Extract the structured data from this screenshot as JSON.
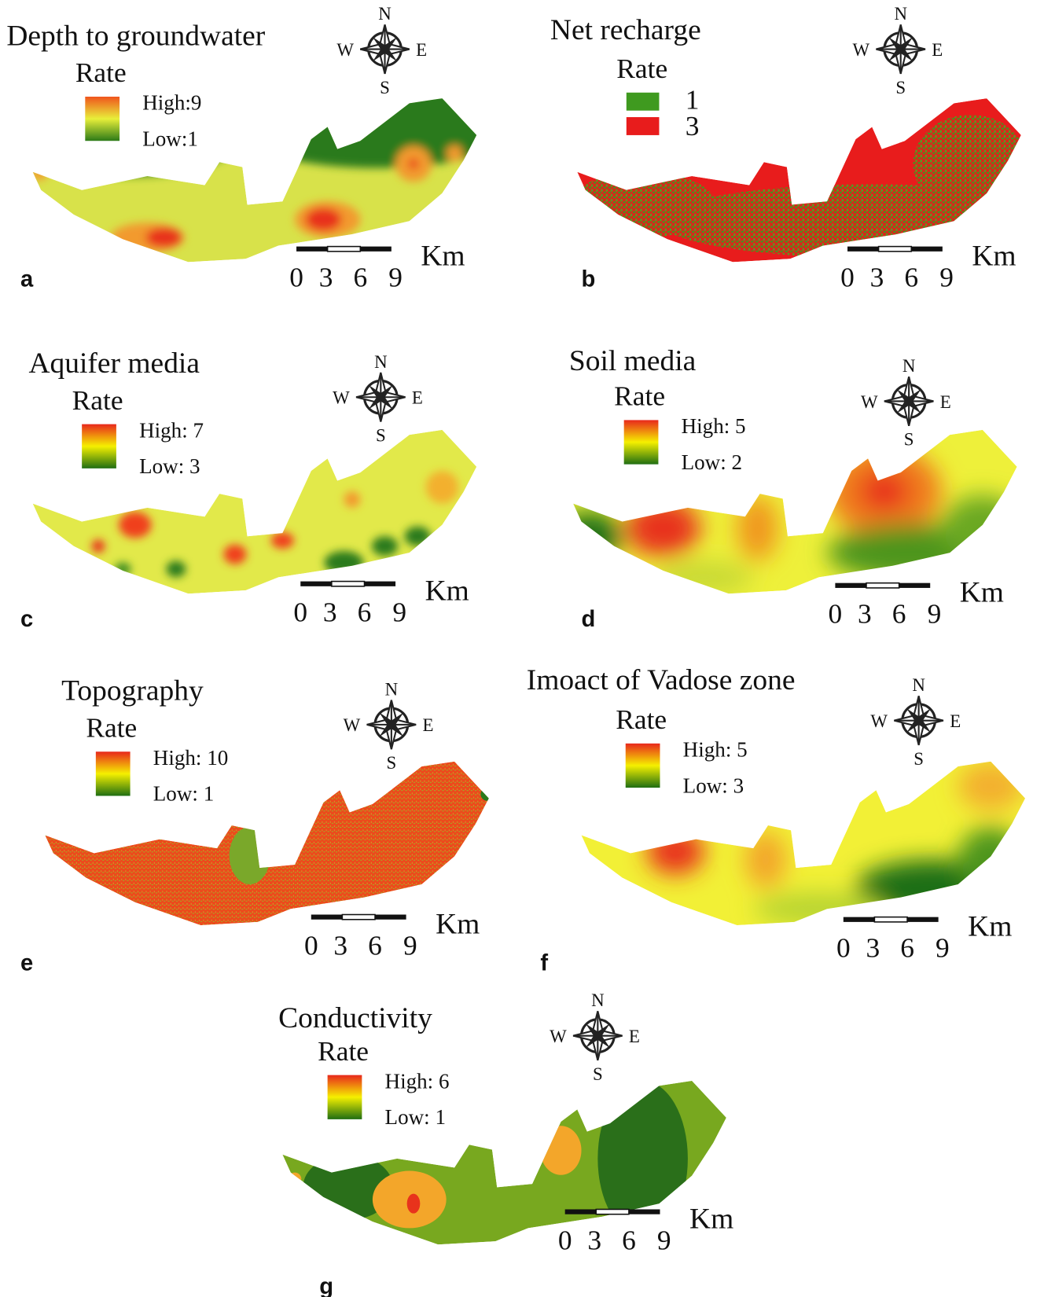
{
  "compass": {
    "north": "N",
    "south": "S",
    "west": "W",
    "east": "E"
  },
  "scale_bar": {
    "labels": [
      "0",
      "3",
      "6",
      "9"
    ],
    "unit": "Km"
  },
  "panels": [
    {
      "letter": "a",
      "title": "Depth to groundwater",
      "legend_title": "Rate",
      "legend": [
        "High:9",
        "Low:1"
      ]
    },
    {
      "letter": "b",
      "title": "Net recharge",
      "legend_title": "Rate",
      "legend": [
        "1",
        "3"
      ]
    },
    {
      "letter": "c",
      "title": "Aquifer media",
      "legend_title": "Rate",
      "legend": [
        "High: 7",
        "Low: 3"
      ]
    },
    {
      "letter": "d",
      "title": "Soil media",
      "legend_title": "Rate",
      "legend": [
        "High: 5",
        "Low: 2"
      ]
    },
    {
      "letter": "e",
      "title": "Topography",
      "legend_title": "Rate",
      "legend": [
        "High: 10",
        "Low: 1"
      ]
    },
    {
      "letter": "f",
      "title": "Imoact of Vadose zone",
      "legend_title": "Rate",
      "legend": [
        "High: 5",
        "Low: 3"
      ]
    },
    {
      "letter": "g",
      "title": "Conductivity",
      "legend_title": "Rate",
      "legend": [
        "High: 6",
        "Low: 1"
      ]
    }
  ]
}
